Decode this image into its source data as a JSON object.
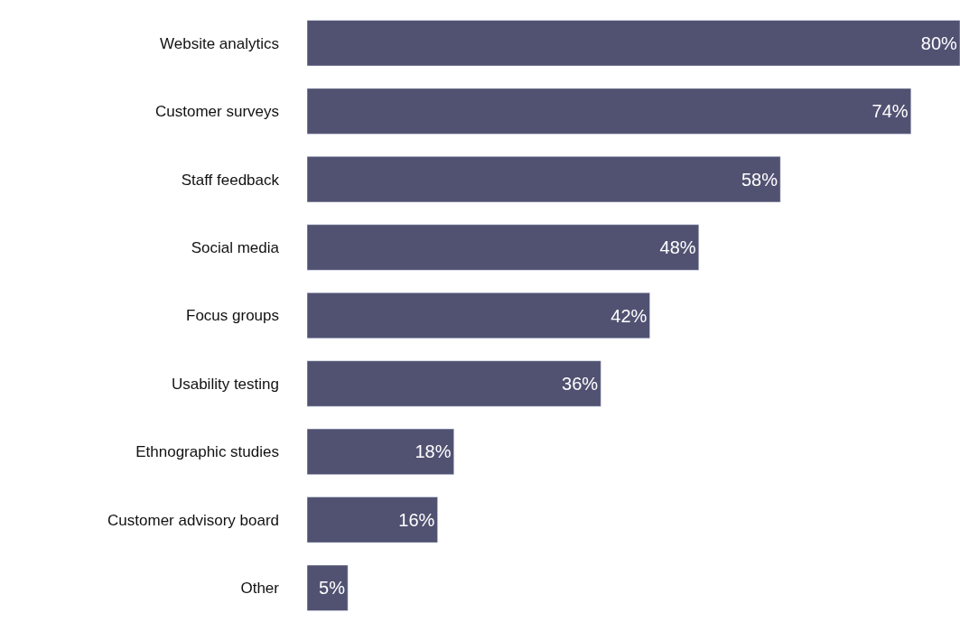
{
  "chart_data": {
    "type": "bar",
    "orientation": "horizontal",
    "categories": [
      "Website analytics",
      "Customer surveys",
      "Staff feedback",
      "Social media",
      "Focus groups",
      "Usability testing",
      "Ethnographic studies",
      "Customer advisory board",
      "Other"
    ],
    "values": [
      80,
      74,
      58,
      48,
      42,
      36,
      18,
      16,
      5
    ],
    "value_labels": [
      "80%",
      "74%",
      "58%",
      "48%",
      "42%",
      "36%",
      "18%",
      "16%",
      "5%"
    ],
    "color": "#515272"
  }
}
